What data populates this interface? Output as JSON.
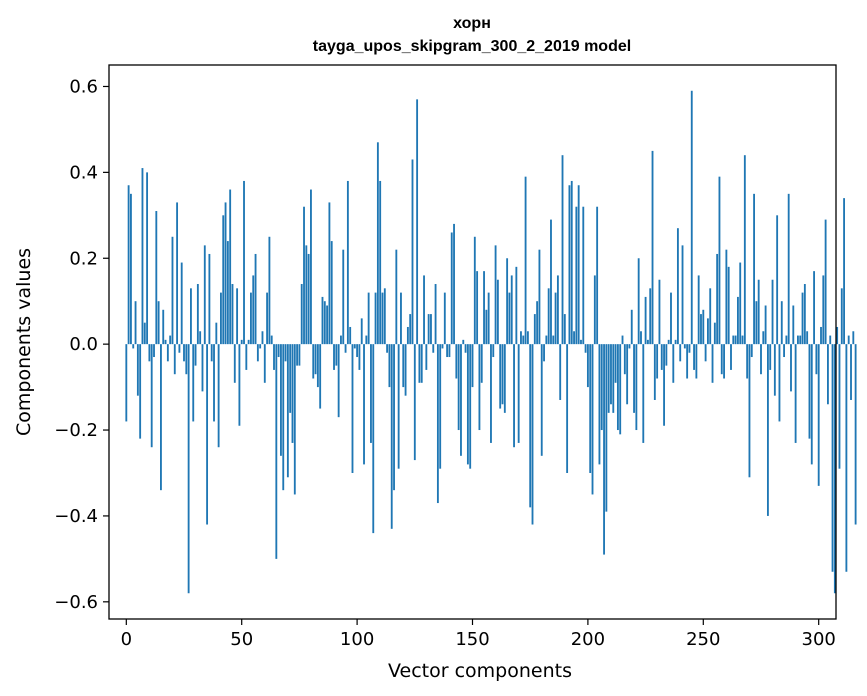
{
  "chart_data": {
    "type": "bar",
    "title": "хорн",
    "subtitle": "tayga_upos_skipgram_300_2_2019 model",
    "xlabel": "Vector components",
    "ylabel": "Components values",
    "xlim": [
      -7.5,
      307.5
    ],
    "ylim": [
      -0.64,
      0.65
    ],
    "xticks": [
      0,
      50,
      100,
      150,
      200,
      250,
      300
    ],
    "xtick_labels": [
      "0",
      "50",
      "100",
      "150",
      "200",
      "250",
      "300"
    ],
    "yticks": [
      -0.6,
      -0.4,
      -0.2,
      0.0,
      0.2,
      0.4,
      0.6
    ],
    "ytick_labels": [
      "−0.6",
      "−0.4",
      "−0.2",
      "0.0",
      "0.2",
      "0.4",
      "0.6"
    ],
    "color": "#1f77b4",
    "grid": false,
    "x_start": 0,
    "values": [
      -0.18,
      0.37,
      0.35,
      -0.01,
      0.1,
      -0.12,
      -0.22,
      0.41,
      0.05,
      0.4,
      -0.04,
      -0.24,
      -0.03,
      0.31,
      0.1,
      -0.34,
      0.08,
      0.01,
      -0.04,
      0.02,
      0.25,
      -0.07,
      0.33,
      -0.02,
      0.19,
      -0.04,
      -0.07,
      -0.58,
      0.13,
      -0.18,
      -0.05,
      0.14,
      0.03,
      -0.11,
      0.23,
      -0.42,
      0.21,
      -0.04,
      -0.18,
      0.05,
      -0.24,
      0.12,
      0.3,
      0.33,
      0.24,
      0.36,
      0.14,
      -0.09,
      0.13,
      -0.19,
      0.01,
      0.38,
      -0.06,
      0.01,
      0.12,
      0.16,
      0.21,
      -0.04,
      -0.01,
      0.03,
      -0.09,
      0.12,
      0.25,
      0.02,
      -0.06,
      -0.5,
      -0.03,
      -0.26,
      -0.34,
      -0.04,
      -0.31,
      -0.16,
      -0.23,
      -0.35,
      -0.05,
      -0.05,
      0.14,
      0.32,
      0.23,
      0.21,
      0.36,
      -0.08,
      -0.07,
      -0.1,
      -0.15,
      0.11,
      0.1,
      0.09,
      0.33,
      0.24,
      -0.06,
      -0.05,
      -0.17,
      0.02,
      0.22,
      -0.02,
      0.38,
      0.04,
      -0.3,
      -0.01,
      -0.03,
      -0.06,
      0.06,
      -0.28,
      0.02,
      0.12,
      -0.23,
      -0.44,
      0.12,
      0.47,
      0.38,
      0.12,
      0.13,
      -0.02,
      -0.1,
      -0.43,
      -0.34,
      0.22,
      -0.29,
      0.12,
      -0.1,
      -0.12,
      0.04,
      0.07,
      0.43,
      -0.27,
      0.57,
      -0.09,
      -0.09,
      0.16,
      -0.06,
      0.07,
      0.07,
      -0.02,
      0.14,
      -0.37,
      -0.29,
      -0.01,
      0.12,
      -0.03,
      -0.03,
      0.26,
      0.28,
      -0.08,
      -0.2,
      -0.26,
      0.01,
      -0.02,
      -0.28,
      -0.29,
      -0.1,
      0.25,
      0.17,
      -0.2,
      -0.09,
      0.17,
      0.08,
      0.12,
      -0.23,
      -0.03,
      0.23,
      0.15,
      -0.15,
      -0.14,
      -0.16,
      0.2,
      0.12,
      0.16,
      -0.24,
      0.18,
      -0.23,
      0.03,
      0.02,
      0.39,
      0.03,
      -0.38,
      -0.42,
      0.07,
      0.1,
      0.22,
      -0.26,
      -0.04,
      0.02,
      0.13,
      0.29,
      0.02,
      0.12,
      0.16,
      -0.13,
      0.44,
      0.07,
      -0.3,
      0.37,
      0.38,
      0.03,
      0.32,
      0.37,
      0.01,
      0.32,
      -0.02,
      -0.1,
      -0.3,
      -0.35,
      0.16,
      0.32,
      -0.28,
      -0.2,
      -0.49,
      -0.39,
      -0.16,
      -0.14,
      -0.16,
      -0.09,
      -0.2,
      -0.21,
      0.02,
      -0.07,
      -0.14,
      -0.01,
      0.08,
      -0.16,
      -0.2,
      0.2,
      0.03,
      -0.23,
      0.11,
      0.01,
      0.13,
      0.45,
      -0.13,
      -0.08,
      0.15,
      -0.06,
      -0.19,
      -0.05,
      0.01,
      0.12,
      -0.09,
      0.01,
      0.27,
      -0.04,
      0.23,
      -0.01,
      -0.08,
      -0.02,
      0.59,
      -0.06,
      -0.08,
      0.16,
      0.07,
      0.08,
      -0.04,
      0.06,
      0.13,
      -0.09,
      0.05,
      0.21,
      0.39,
      -0.07,
      -0.08,
      0.22,
      0.18,
      -0.06,
      0.02,
      0.02,
      0.11,
      0.19,
      0.02,
      0.44,
      -0.08,
      -0.31,
      -0.03,
      0.35,
      0.1,
      0.15,
      -0.07,
      0.03,
      0.09,
      -0.4,
      -0.06,
      0.15,
      -0.12,
      0.3,
      -0.18,
      0.1,
      -0.03,
      0.02,
      0.35,
      -0.11,
      0.09,
      -0.23,
      0.02,
      0.02,
      0.12,
      0.14,
      0.03,
      -0.22,
      -0.28,
      0.17,
      -0.07,
      -0.33,
      0.04,
      0.16,
      0.29,
      -0.14,
      0.02,
      -0.53,
      -0.58,
      0.04,
      -0.29,
      0.13,
      0.34,
      -0.53,
      0.02,
      -0.13,
      0.03,
      -0.42
    ]
  }
}
